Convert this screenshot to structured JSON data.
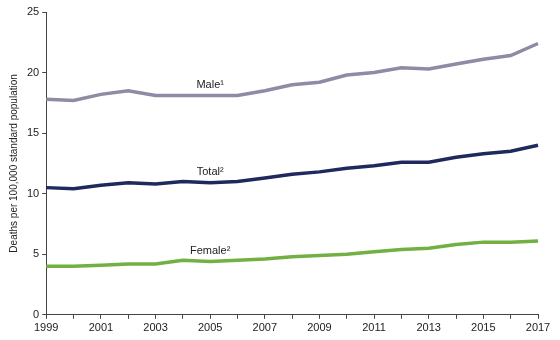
{
  "chart_data": {
    "type": "line",
    "y_label": "Deaths per 100,000 standard population",
    "categories": [
      "1999",
      null,
      "2001",
      null,
      "2003",
      null,
      "2005",
      null,
      "2007",
      null,
      "2009",
      null,
      "2011",
      null,
      "2013",
      null,
      "2015",
      null,
      "2017"
    ],
    "series": [
      {
        "name": "Male¹",
        "color": "#8c8ca4",
        "values": [
          17.8,
          17.7,
          18.2,
          18.5,
          18.1,
          18.1,
          18.1,
          18.1,
          18.5,
          19.0,
          19.2,
          19.8,
          20.0,
          20.4,
          20.3,
          20.7,
          21.1,
          21.4,
          22.4
        ]
      },
      {
        "name": "Total²",
        "color": "#1e2a5e",
        "values": [
          10.5,
          10.4,
          10.7,
          10.9,
          10.8,
          11.0,
          10.9,
          11.0,
          11.3,
          11.6,
          11.8,
          12.1,
          12.3,
          12.6,
          12.6,
          13.0,
          13.3,
          13.5,
          14.0
        ]
      },
      {
        "name": "Female²",
        "color": "#72b043",
        "values": [
          4.0,
          4.0,
          4.1,
          4.2,
          4.2,
          4.5,
          4.4,
          4.5,
          4.6,
          4.8,
          4.9,
          5.0,
          5.2,
          5.4,
          5.5,
          5.8,
          6.0,
          6.0,
          6.1
        ]
      }
    ],
    "ylim": [
      0,
      25
    ],
    "yticks": [
      0,
      5,
      10,
      15,
      20,
      25
    ],
    "grid": false
  }
}
